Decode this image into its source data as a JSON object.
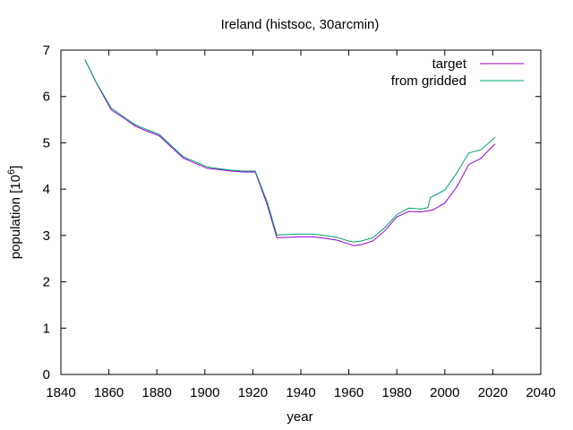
{
  "chart_data": {
    "type": "line",
    "title": "Ireland (histsoc, 30arcmin)",
    "xlabel": "year",
    "ylabel": {
      "base": "population [10",
      "sup": "6",
      "end": "]"
    },
    "xlim": [
      1840,
      2040
    ],
    "ylim": [
      0,
      7
    ],
    "xticks": [
      1840,
      1860,
      1880,
      1900,
      1920,
      1940,
      1960,
      1980,
      2000,
      2020,
      2040
    ],
    "yticks": [
      0,
      1,
      2,
      3,
      4,
      5,
      6,
      7
    ],
    "grid": false,
    "legend": "top-right",
    "series": [
      {
        "name": "target",
        "color": "#9400d3",
        "x": [
          1850,
          1855,
          1861,
          1866,
          1871,
          1876,
          1881,
          1886,
          1891,
          1896,
          1901,
          1906,
          1911,
          1916,
          1921,
          1926,
          1930,
          1935,
          1940,
          1945,
          1950,
          1955,
          1960,
          1962,
          1965,
          1970,
          1975,
          1980,
          1985,
          1990,
          1993,
          1995,
          2000,
          2005,
          2010,
          2015,
          2020,
          2021
        ],
        "y": [
          6.8,
          6.27,
          5.71,
          5.54,
          5.36,
          5.25,
          5.15,
          4.91,
          4.67,
          4.56,
          4.45,
          4.42,
          4.39,
          4.37,
          4.37,
          3.66,
          2.95,
          2.96,
          2.97,
          2.97,
          2.94,
          2.9,
          2.82,
          2.78,
          2.8,
          2.88,
          3.1,
          3.4,
          3.52,
          3.51,
          3.53,
          3.55,
          3.7,
          4.05,
          4.53,
          4.66,
          4.93,
          4.98
        ]
      },
      {
        "name": "from gridded",
        "color": "#009e73",
        "x": [
          1850,
          1855,
          1861,
          1866,
          1871,
          1876,
          1881,
          1886,
          1891,
          1896,
          1901,
          1906,
          1911,
          1916,
          1921,
          1926,
          1930,
          1935,
          1940,
          1945,
          1950,
          1955,
          1960,
          1962,
          1965,
          1970,
          1975,
          1980,
          1985,
          1990,
          1993,
          1994,
          2000,
          2005,
          2010,
          2015,
          2020,
          2021
        ],
        "y": [
          6.8,
          6.28,
          5.75,
          5.57,
          5.39,
          5.28,
          5.18,
          4.94,
          4.7,
          4.59,
          4.48,
          4.44,
          4.41,
          4.39,
          4.39,
          3.72,
          3.01,
          3.02,
          3.03,
          3.03,
          3.0,
          2.96,
          2.88,
          2.86,
          2.88,
          2.95,
          3.17,
          3.45,
          3.59,
          3.57,
          3.6,
          3.82,
          3.98,
          4.35,
          4.78,
          4.85,
          5.07,
          5.12
        ]
      }
    ]
  }
}
